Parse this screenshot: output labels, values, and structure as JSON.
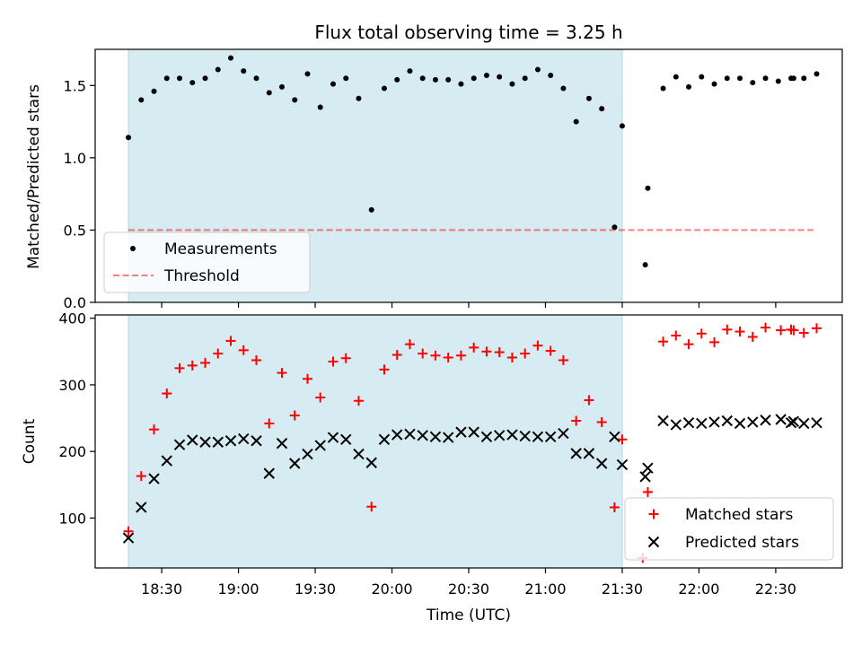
{
  "title": "Flux total observing time = 3.25 h",
  "xlabel": "Time (UTC)",
  "x_ticks": [
    "18:30",
    "19:00",
    "19:30",
    "20:00",
    "20:30",
    "21:00",
    "21:30",
    "22:00",
    "22:30"
  ],
  "colors": {
    "shade": "#add8e6",
    "measurement": "#000000",
    "threshold": "#ff0000",
    "matched": "#ff0000",
    "predicted": "#000000"
  },
  "chart_data": [
    {
      "type": "scatter",
      "ylabel": "Matched/Predicted stars",
      "xlim": [
        "18:04",
        "22:56"
      ],
      "ylim": [
        0,
        1.75
      ],
      "y_ticks": [
        "0.0",
        "0.5",
        "1.0",
        "1.5"
      ],
      "shaded_span": [
        "18:17",
        "21:30"
      ],
      "legend_position": "lower-left",
      "series": [
        {
          "name": "Measurements",
          "marker": "dot",
          "x": [
            "18:17",
            "18:22",
            "18:27",
            "18:32",
            "18:37",
            "18:42",
            "18:47",
            "18:52",
            "18:57",
            "19:02",
            "19:07",
            "19:12",
            "19:17",
            "19:22",
            "19:27",
            "19:32",
            "19:37",
            "19:42",
            "19:47",
            "19:52",
            "19:57",
            "20:02",
            "20:07",
            "20:12",
            "20:17",
            "20:22",
            "20:27",
            "20:32",
            "20:37",
            "20:42",
            "20:47",
            "20:52",
            "20:57",
            "21:02",
            "21:07",
            "21:12",
            "21:17",
            "21:22",
            "21:27",
            "21:30",
            "21:39",
            "21:40",
            "21:46",
            "21:51",
            "21:56",
            "22:01",
            "22:06",
            "22:11",
            "22:16",
            "22:21",
            "22:26",
            "22:31",
            "22:36",
            "22:37",
            "22:41",
            "22:46"
          ],
          "y": [
            1.14,
            1.4,
            1.46,
            1.55,
            1.55,
            1.52,
            1.55,
            1.61,
            1.69,
            1.6,
            1.55,
            1.45,
            1.49,
            1.4,
            1.58,
            1.35,
            1.51,
            1.55,
            1.41,
            0.64,
            1.48,
            1.54,
            1.6,
            1.55,
            1.54,
            1.54,
            1.51,
            1.55,
            1.57,
            1.56,
            1.51,
            1.55,
            1.61,
            1.57,
            1.48,
            1.25,
            1.41,
            1.34,
            0.52,
            1.22,
            0.26,
            0.79,
            1.48,
            1.56,
            1.49,
            1.56,
            1.51,
            1.55,
            1.55,
            1.52,
            1.55,
            1.53,
            1.55,
            1.55,
            1.55,
            1.58
          ]
        },
        {
          "name": "Threshold",
          "style": "dashed",
          "x": [
            "18:17",
            "22:46"
          ],
          "y": [
            0.5,
            0.5
          ]
        }
      ]
    },
    {
      "type": "scatter",
      "ylabel": "Count",
      "xlim": [
        "18:04",
        "22:56"
      ],
      "ylim": [
        25,
        405
      ],
      "y_ticks": [
        "100",
        "200",
        "300",
        "400"
      ],
      "shaded_span": [
        "18:17",
        "21:30"
      ],
      "legend_position": "lower-right",
      "series": [
        {
          "name": "Matched stars",
          "marker": "plus",
          "x": [
            "18:17",
            "18:22",
            "18:27",
            "18:32",
            "18:37",
            "18:42",
            "18:47",
            "18:52",
            "18:57",
            "19:02",
            "19:07",
            "19:12",
            "19:17",
            "19:22",
            "19:27",
            "19:32",
            "19:37",
            "19:42",
            "19:47",
            "19:52",
            "19:57",
            "20:02",
            "20:07",
            "20:12",
            "20:17",
            "20:22",
            "20:27",
            "20:32",
            "20:37",
            "20:42",
            "20:47",
            "20:52",
            "20:57",
            "21:02",
            "21:07",
            "21:12",
            "21:17",
            "21:22",
            "21:27",
            "21:30",
            "21:38",
            "21:40",
            "21:46",
            "21:51",
            "21:56",
            "22:01",
            "22:06",
            "22:11",
            "22:16",
            "22:21",
            "22:26",
            "22:32",
            "22:36",
            "22:37",
            "22:41",
            "22:46"
          ],
          "y": [
            80,
            163,
            233,
            287,
            325,
            329,
            333,
            347,
            366,
            352,
            337,
            242,
            318,
            254,
            309,
            281,
            335,
            340,
            276,
            117,
            323,
            345,
            361,
            347,
            344,
            341,
            344,
            356,
            350,
            349,
            341,
            347,
            359,
            351,
            337,
            246,
            277,
            244,
            116,
            218,
            40,
            139,
            365,
            374,
            361,
            377,
            364,
            383,
            380,
            372,
            386,
            382,
            383,
            382,
            378,
            385
          ]
        },
        {
          "name": "Predicted stars",
          "marker": "x",
          "x": [
            "18:17",
            "18:22",
            "18:27",
            "18:32",
            "18:37",
            "18:42",
            "18:47",
            "18:52",
            "18:57",
            "19:02",
            "19:07",
            "19:12",
            "19:17",
            "19:22",
            "19:27",
            "19:32",
            "19:37",
            "19:42",
            "19:47",
            "19:52",
            "19:57",
            "20:02",
            "20:07",
            "20:12",
            "20:17",
            "20:22",
            "20:27",
            "20:32",
            "20:37",
            "20:42",
            "20:47",
            "20:52",
            "20:57",
            "21:02",
            "21:07",
            "21:12",
            "21:17",
            "21:22",
            "21:27",
            "21:30",
            "21:39",
            "21:40",
            "21:46",
            "21:51",
            "21:56",
            "22:01",
            "22:06",
            "22:11",
            "22:16",
            "22:21",
            "22:26",
            "22:32",
            "22:36",
            "22:37",
            "22:41",
            "22:46"
          ],
          "y": [
            70,
            116,
            159,
            186,
            210,
            217,
            214,
            214,
            216,
            219,
            216,
            167,
            212,
            182,
            196,
            209,
            221,
            218,
            196,
            183,
            218,
            225,
            226,
            224,
            222,
            221,
            229,
            229,
            222,
            224,
            225,
            223,
            222,
            222,
            227,
            197,
            197,
            182,
            222,
            180,
            162,
            175,
            246,
            240,
            243,
            242,
            244,
            246,
            242,
            244,
            247,
            248,
            243,
            245,
            242,
            243
          ]
        }
      ]
    }
  ]
}
